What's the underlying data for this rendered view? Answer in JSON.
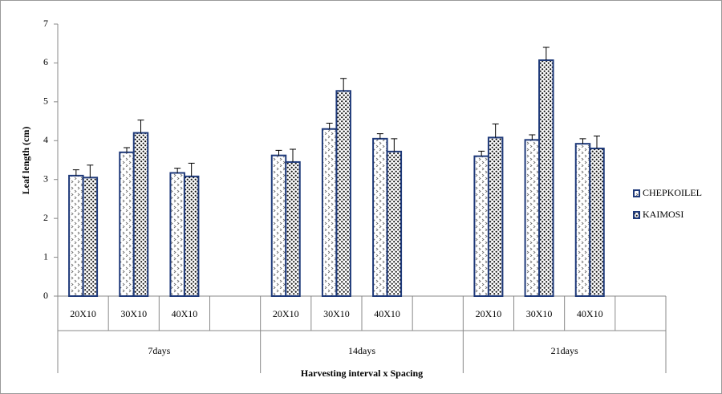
{
  "chart_data": {
    "type": "bar",
    "ylabel": "Leaf length (cm)",
    "xlabel": "Harvesting interval x Spacing",
    "categories": [
      "20X10",
      "30X10",
      "40X10",
      null,
      "20X10",
      "30X10",
      "40X10",
      null,
      "20X10",
      "30X10",
      "40X10",
      null
    ],
    "groups": [
      "7days",
      "14days",
      "21days"
    ],
    "series": [
      {
        "name": "CHEPKOILEL",
        "color": "#1f3a7a",
        "values": [
          3.1,
          3.7,
          3.17,
          null,
          3.62,
          4.3,
          4.05,
          null,
          3.6,
          4.02,
          3.92,
          null
        ],
        "errors": [
          0.15,
          0.12,
          0.12,
          null,
          0.13,
          0.15,
          0.13,
          null,
          0.13,
          0.13,
          0.13,
          null
        ]
      },
      {
        "name": "KAIMOSI",
        "color": "#1f3a7a",
        "values": [
          3.05,
          4.2,
          3.08,
          null,
          3.45,
          5.28,
          3.72,
          null,
          4.08,
          6.07,
          3.8,
          null
        ],
        "errors": [
          0.32,
          0.33,
          0.34,
          null,
          0.33,
          0.32,
          0.33,
          null,
          0.35,
          0.33,
          0.32,
          null
        ]
      }
    ],
    "ylim": [
      0,
      7
    ],
    "yticks": [
      0,
      1,
      2,
      3,
      4,
      5,
      6,
      7
    ],
    "legend": "right"
  }
}
